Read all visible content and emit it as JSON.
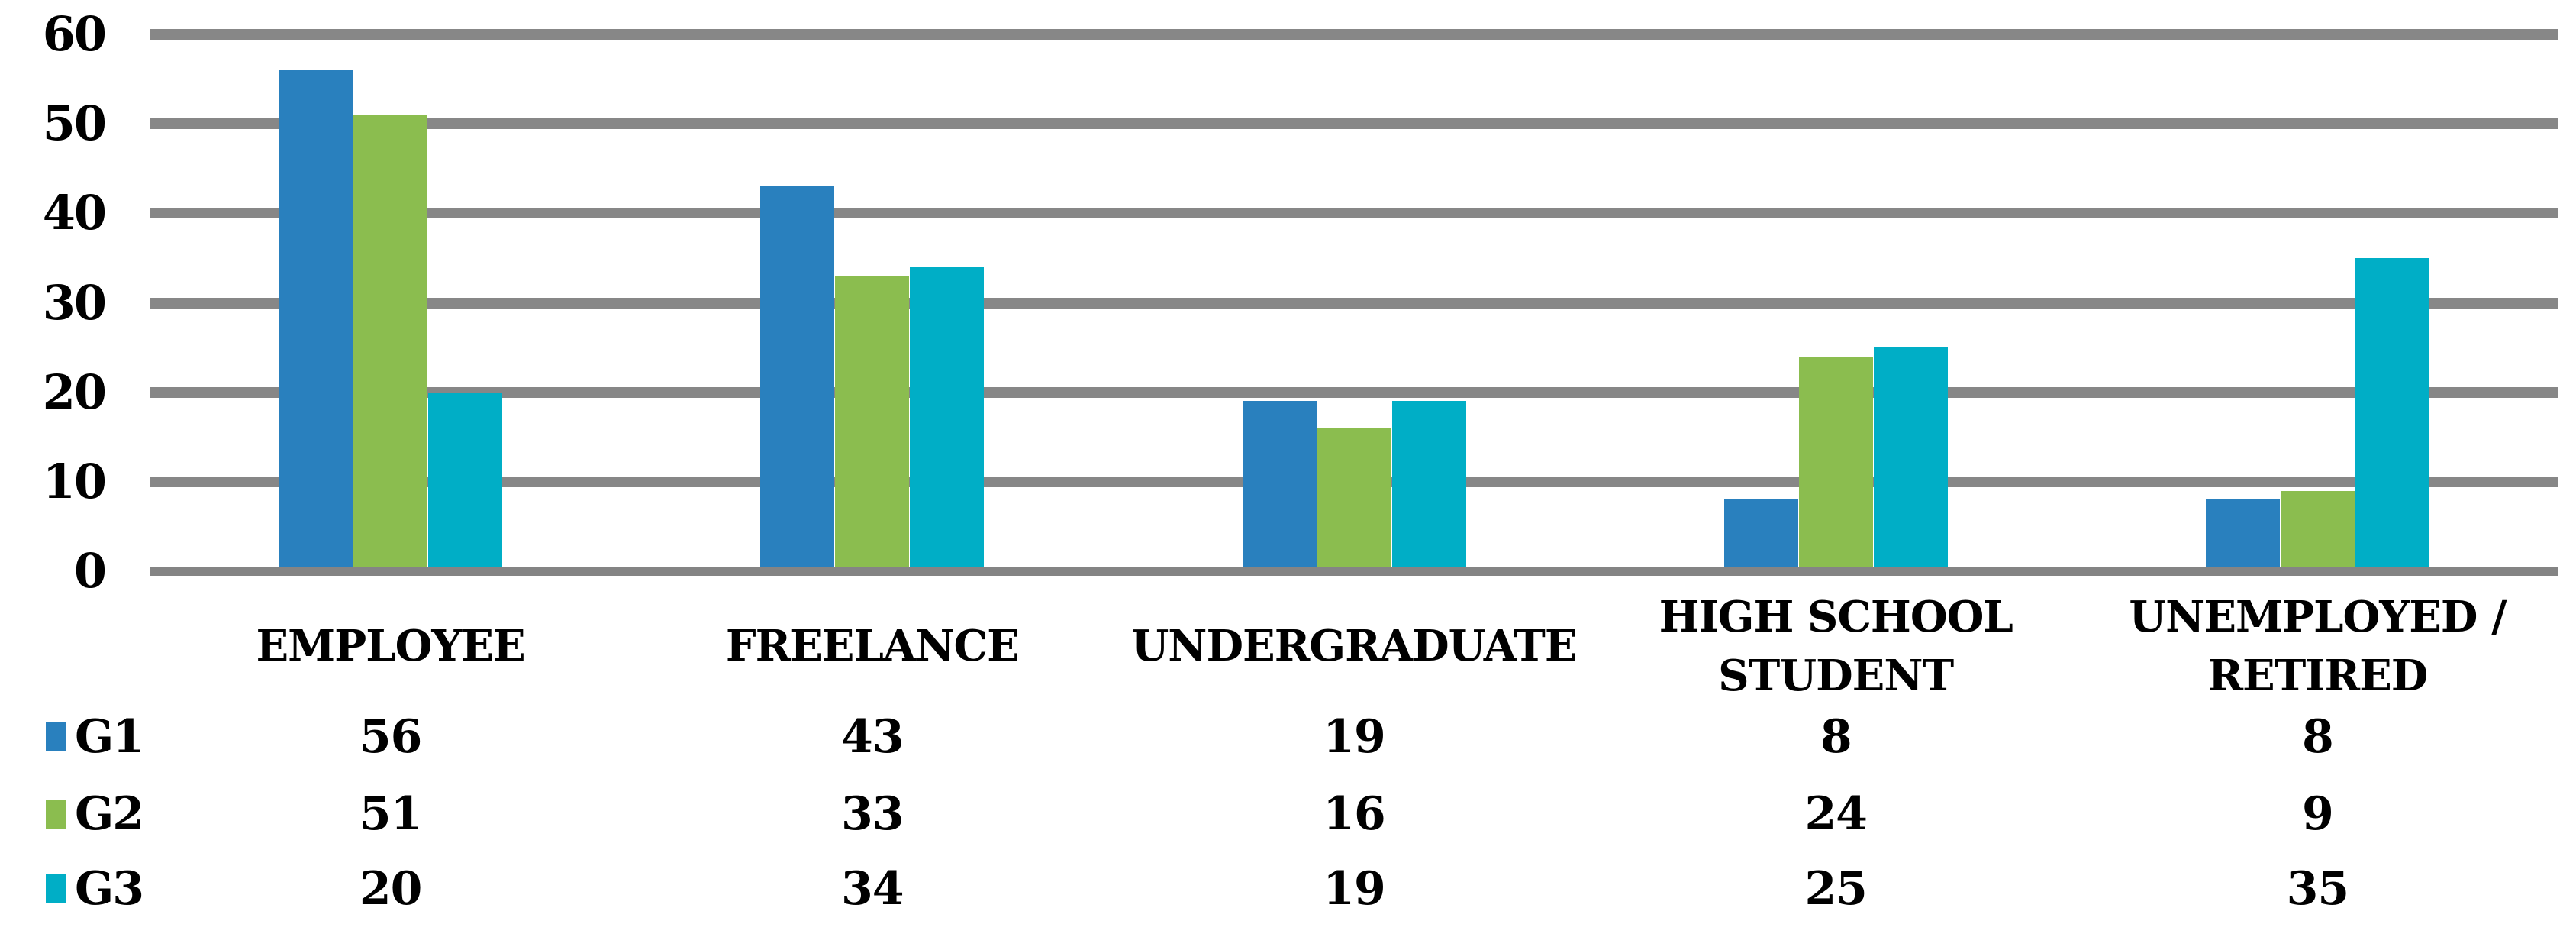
{
  "chart_data": {
    "type": "bar",
    "title": "",
    "xlabel": "",
    "ylabel": "",
    "categories": [
      "EMPLOYEE",
      "FREELANCE",
      "UNDERGRADUATE",
      "HIGH SCHOOL\nSTUDENT",
      "UNEMPLOYED /\nRETIRED"
    ],
    "series": [
      {
        "name": "G1",
        "color": "#2980BE",
        "values": [
          56,
          43,
          19,
          8,
          8
        ]
      },
      {
        "name": "G2",
        "color": "#8BBD4F",
        "values": [
          51,
          33,
          16,
          24,
          9
        ]
      },
      {
        "name": "G3",
        "color": "#00AEC6",
        "values": [
          20,
          34,
          19,
          25,
          35
        ]
      }
    ],
    "ylim": [
      0,
      60
    ],
    "ytick_step": 10,
    "ytick_labels": [
      "60",
      "50",
      "40",
      "30",
      "20",
      "10",
      "0"
    ],
    "grid": true,
    "gridline_color": "#878787",
    "axisline_color": "#848484",
    "legend_position": "left-of-data-table",
    "data_table_shown": true
  }
}
